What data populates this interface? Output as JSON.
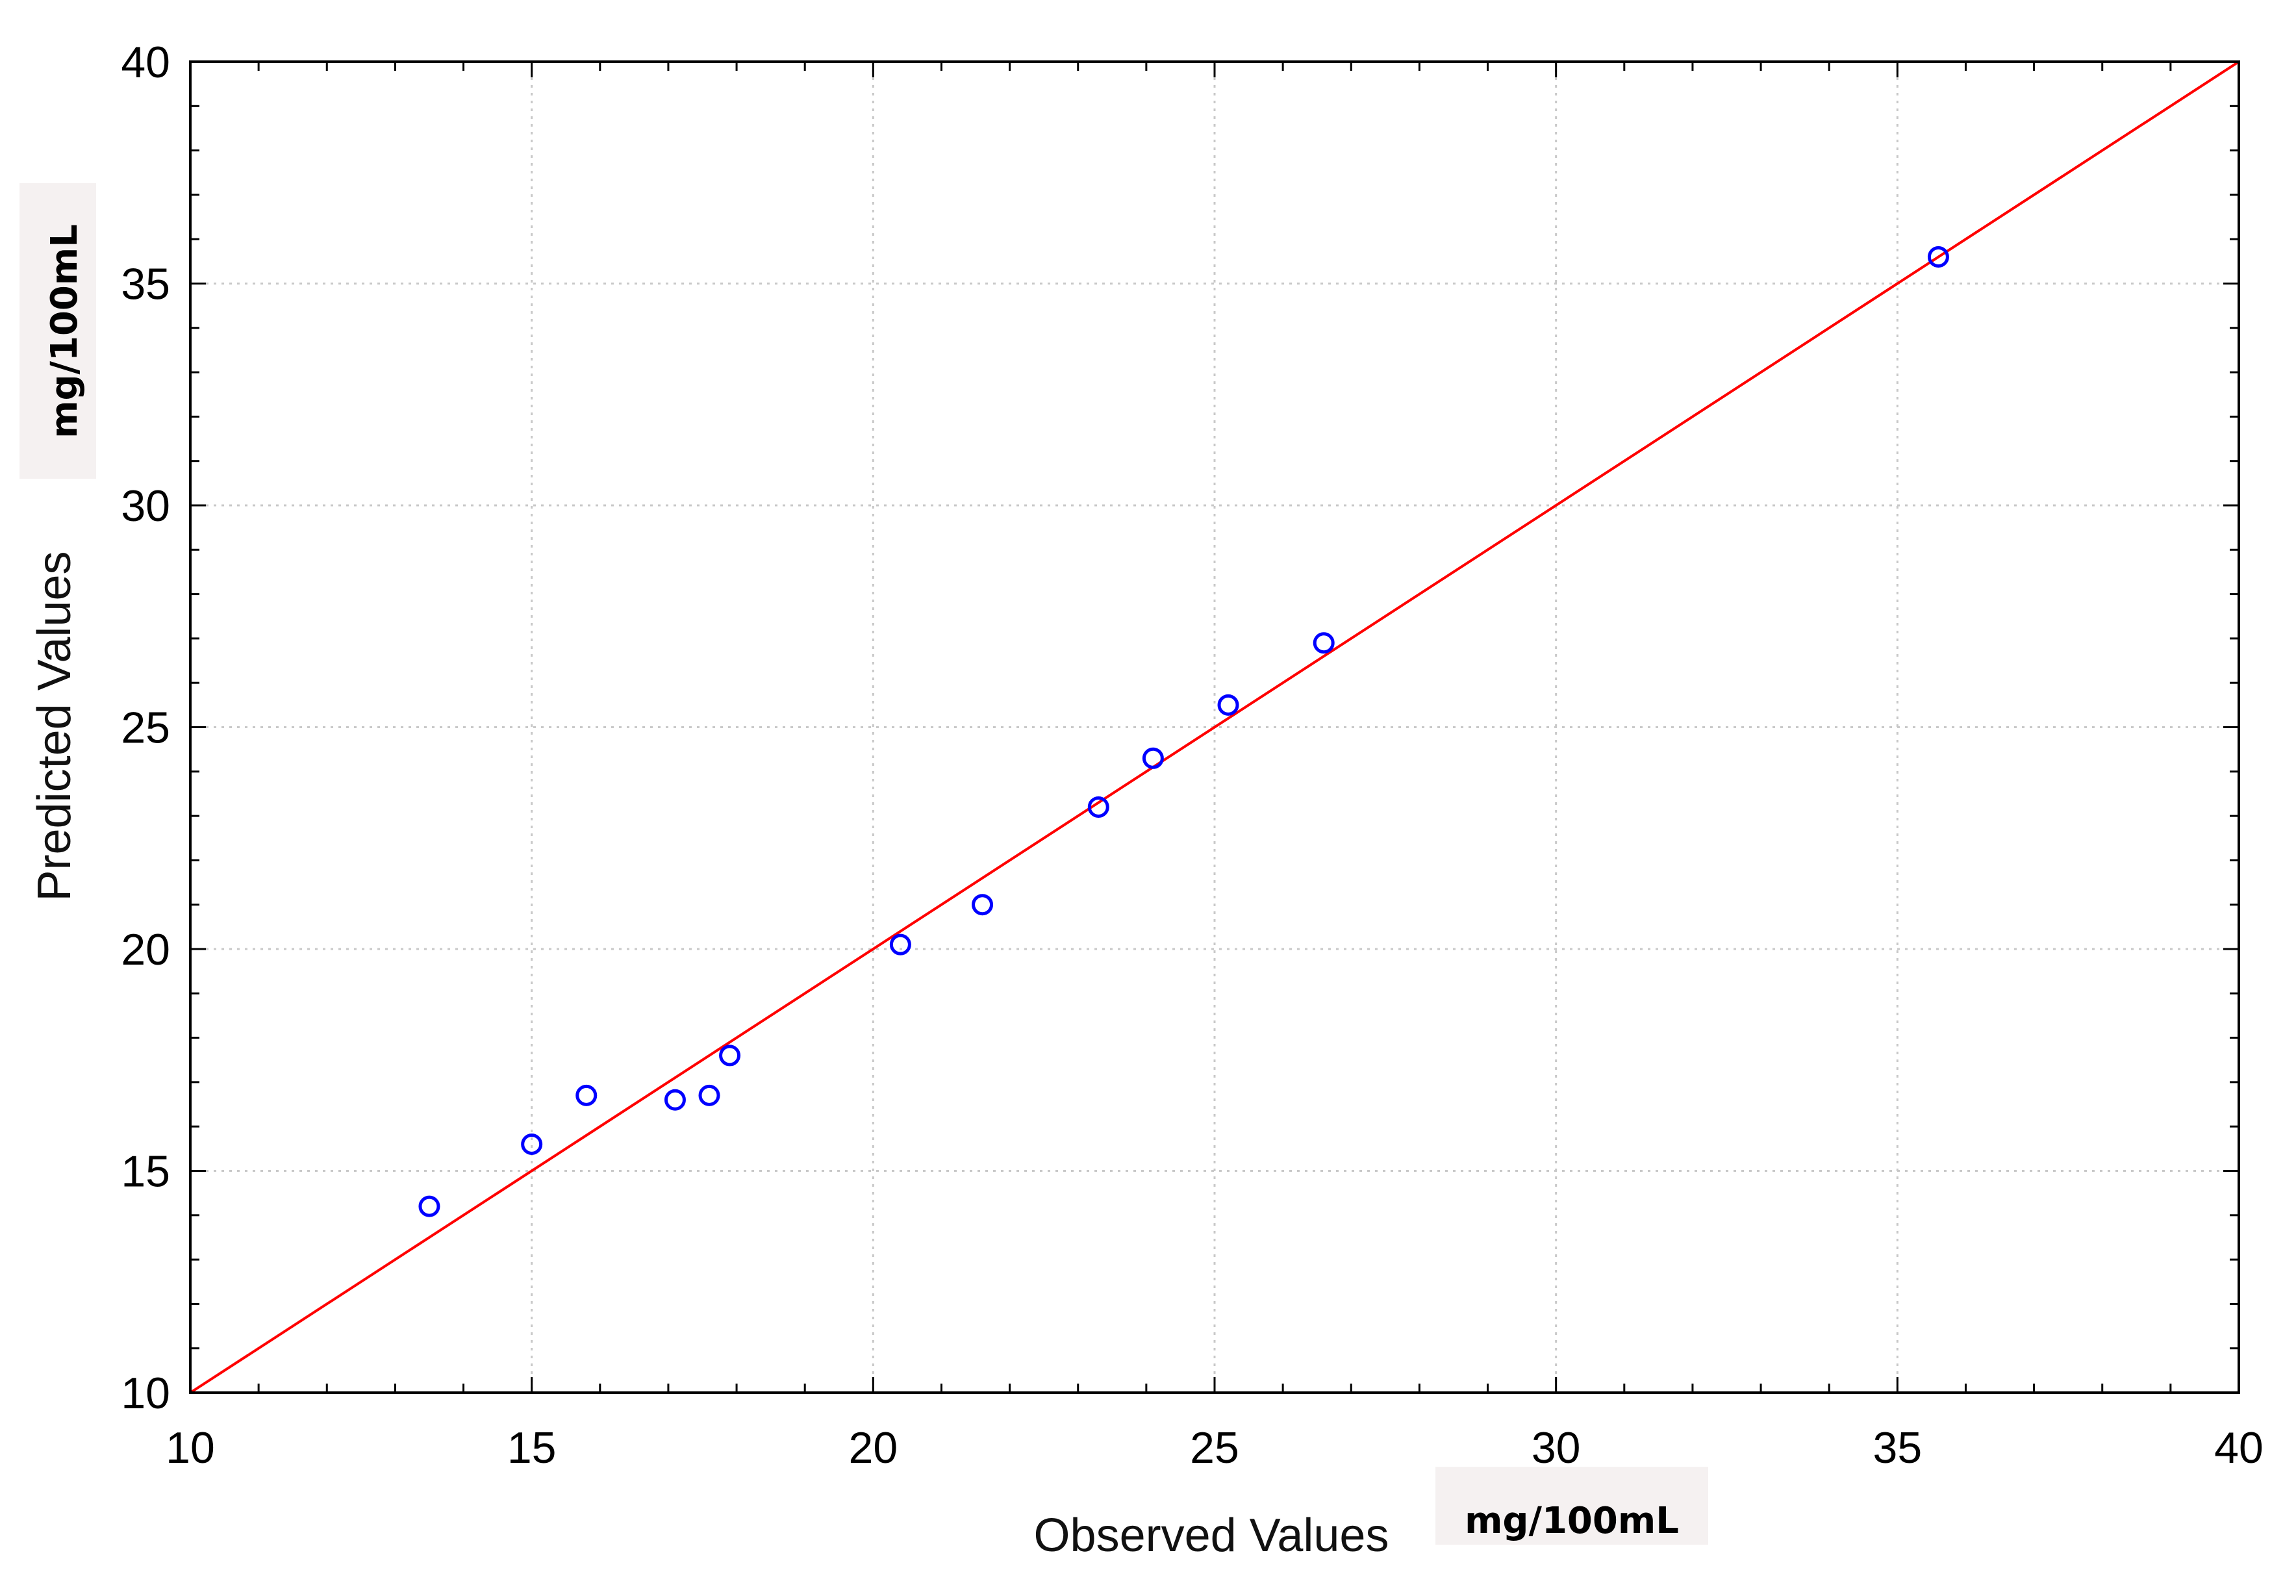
{
  "chart_data": {
    "type": "scatter",
    "title": "",
    "xlabel": "Observed Values",
    "ylabel": "Predicted Values",
    "x_unit": "mg/100mL",
    "y_unit": "mg/100mL",
    "xlim": [
      10,
      40
    ],
    "ylim": [
      10,
      40
    ],
    "x_ticks": [
      "10",
      "15",
      "20",
      "25",
      "30",
      "35",
      "40"
    ],
    "y_ticks": [
      "10",
      "15",
      "20",
      "25",
      "30",
      "35",
      "40"
    ],
    "grid": true,
    "legend": "none",
    "series": [
      {
        "x": [
          13.5,
          15.0,
          15.8,
          17.1,
          17.6,
          17.9,
          20.4,
          21.6,
          23.3,
          24.1,
          25.2,
          26.6,
          35.6
        ],
        "y": [
          14.2,
          15.6,
          16.7,
          16.6,
          16.7,
          17.6,
          20.1,
          21.0,
          23.2,
          24.3,
          25.5,
          26.9,
          35.6
        ],
        "marker": "circle-open",
        "color": "#0000ff"
      }
    ],
    "reference_line": {
      "x": [
        10,
        40
      ],
      "y": [
        10,
        40
      ],
      "color": "#ff0000"
    }
  }
}
